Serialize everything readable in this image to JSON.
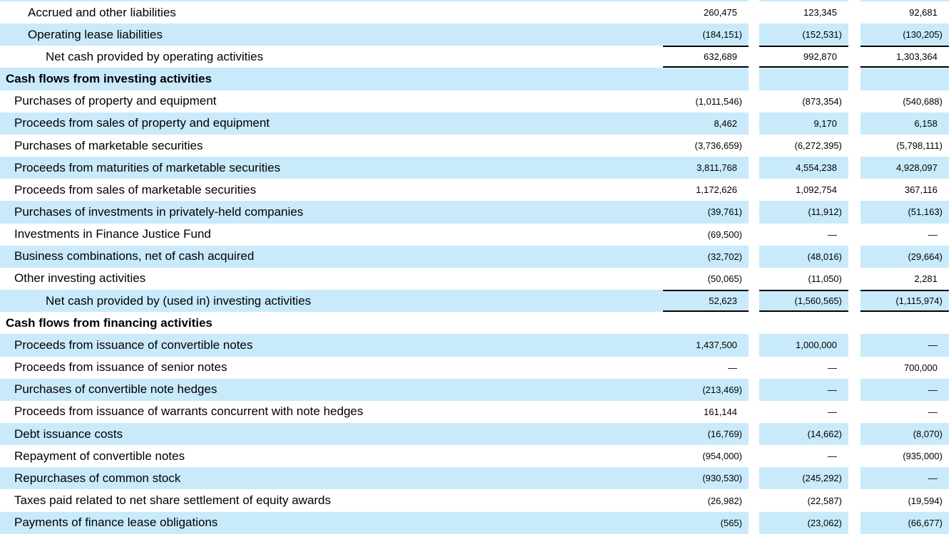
{
  "colors": {
    "stripe": "#c9eafb",
    "rule": "#000000",
    "text": "#000000",
    "background": "#ffffff"
  },
  "table": {
    "rows": [
      {
        "label": "Accrued and other liabilities",
        "indent": 2,
        "shade": false,
        "values": [
          "260,475",
          "123,345",
          "92,681"
        ]
      },
      {
        "label": "Operating lease liabilities",
        "indent": 2,
        "shade": true,
        "values": [
          "(184,151)",
          "(152,531)",
          "(130,205)"
        ]
      },
      {
        "label": "Net cash provided by operating activities",
        "indent": 3,
        "shade": false,
        "total": true,
        "values": [
          "632,689",
          "992,870",
          "1,303,364"
        ]
      },
      {
        "label": "Cash flows from investing activities",
        "indent": 0,
        "shade": true,
        "header": true,
        "values": [
          "",
          "",
          ""
        ]
      },
      {
        "label": "Purchases of property and equipment",
        "indent": 1,
        "shade": false,
        "values": [
          "(1,011,546)",
          "(873,354)",
          "(540,688)"
        ]
      },
      {
        "label": "Proceeds from sales of property and equipment",
        "indent": 1,
        "shade": true,
        "values": [
          "8,462",
          "9,170",
          "6,158"
        ]
      },
      {
        "label": "Purchases of marketable securities",
        "indent": 1,
        "shade": false,
        "values": [
          "(3,736,659)",
          "(6,272,395)",
          "(5,798,111)"
        ]
      },
      {
        "label": "Proceeds from maturities of marketable securities",
        "indent": 1,
        "shade": true,
        "values": [
          "3,811,768",
          "4,554,238",
          "4,928,097"
        ]
      },
      {
        "label": "Proceeds from sales of marketable securities",
        "indent": 1,
        "shade": false,
        "values": [
          "1,172,626",
          "1,092,754",
          "367,116"
        ]
      },
      {
        "label": "Purchases of investments in privately-held companies",
        "indent": 1,
        "shade": true,
        "values": [
          "(39,761)",
          "(11,912)",
          "(51,163)"
        ]
      },
      {
        "label": "Investments in Finance Justice Fund",
        "indent": 1,
        "shade": false,
        "values": [
          "(69,500)",
          "—",
          "—"
        ]
      },
      {
        "label": "Business combinations, net of cash acquired",
        "indent": 1,
        "shade": true,
        "values": [
          "(32,702)",
          "(48,016)",
          "(29,664)"
        ]
      },
      {
        "label": "Other investing activities",
        "indent": 1,
        "shade": false,
        "values": [
          "(50,065)",
          "(11,050)",
          "2,281"
        ]
      },
      {
        "label": "Net cash provided by (used in) investing activities",
        "indent": 3,
        "shade": true,
        "total": true,
        "values": [
          "52,623",
          "(1,560,565)",
          "(1,115,974)"
        ]
      },
      {
        "label": "Cash flows from financing activities",
        "indent": 0,
        "shade": false,
        "header": true,
        "values": [
          "",
          "",
          ""
        ]
      },
      {
        "label": "Proceeds from issuance of convertible notes",
        "indent": 1,
        "shade": true,
        "values": [
          "1,437,500",
          "1,000,000",
          "—"
        ]
      },
      {
        "label": "Proceeds from issuance of senior notes",
        "indent": 1,
        "shade": false,
        "values": [
          "—",
          "—",
          "700,000"
        ]
      },
      {
        "label": "Purchases of convertible note hedges",
        "indent": 1,
        "shade": true,
        "values": [
          "(213,469)",
          "—",
          "—"
        ]
      },
      {
        "label": "Proceeds from issuance of warrants concurrent with note hedges",
        "indent": 1,
        "shade": false,
        "values": [
          "161,144",
          "—",
          "—"
        ]
      },
      {
        "label": "Debt issuance costs",
        "indent": 1,
        "shade": true,
        "values": [
          "(16,769)",
          "(14,662)",
          "(8,070)"
        ]
      },
      {
        "label": "Repayment of convertible notes",
        "indent": 1,
        "shade": false,
        "values": [
          "(954,000)",
          "—",
          "(935,000)"
        ]
      },
      {
        "label": "Repurchases of common stock",
        "indent": 1,
        "shade": true,
        "values": [
          "(930,530)",
          "(245,292)",
          "—"
        ]
      },
      {
        "label": "Taxes paid related to net share settlement of equity awards",
        "indent": 1,
        "shade": false,
        "values": [
          "(26,982)",
          "(22,587)",
          "(19,594)"
        ]
      },
      {
        "label": "Payments of finance lease obligations",
        "indent": 1,
        "shade": true,
        "values": [
          "(565)",
          "(23,062)",
          "(66,677)"
        ]
      }
    ]
  }
}
